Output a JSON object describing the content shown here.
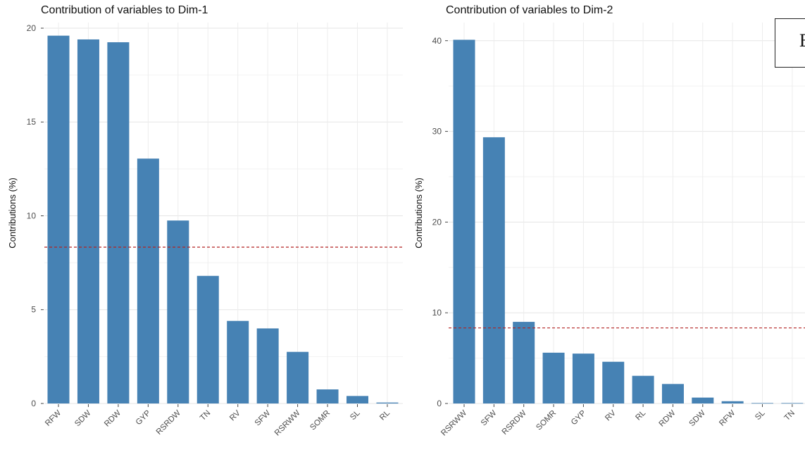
{
  "chart_data": [
    {
      "type": "bar",
      "title": "Contribution of variables to Dim-1",
      "xlabel": "",
      "ylabel": "Contributions (%)",
      "categories": [
        "RFW",
        "SDW",
        "RDW",
        "GYP",
        "RSRDW",
        "TN",
        "RV",
        "SFW",
        "RSRWW",
        "SOMR",
        "SL",
        "RL"
      ],
      "values": [
        19.6,
        19.4,
        19.25,
        13.05,
        9.75,
        6.8,
        4.4,
        4.0,
        2.75,
        0.75,
        0.4,
        0.05
      ],
      "ylim": [
        0,
        20.3
      ],
      "yticks": [
        0,
        5,
        10,
        15,
        20
      ],
      "reference_line": 8.33,
      "bar_color": "#4682b4",
      "reference_color": "#b22222",
      "grid": true
    },
    {
      "type": "bar",
      "title": "Contribution of variables to Dim-2",
      "xlabel": "",
      "ylabel": "Contributions (%)",
      "categories": [
        "RSRWW",
        "SFW",
        "RSRDW",
        "SOMR",
        "GYP",
        "RV",
        "RL",
        "RDW",
        "SDW",
        "RFW",
        "SL",
        "TN"
      ],
      "values": [
        40.1,
        29.35,
        9.0,
        5.6,
        5.5,
        4.6,
        3.05,
        2.15,
        0.65,
        0.25,
        0.05,
        0.05
      ],
      "ylim": [
        0,
        42
      ],
      "yticks": [
        0,
        10,
        20,
        30,
        40
      ],
      "reference_line": 8.33,
      "bar_color": "#4682b4",
      "reference_color": "#b22222",
      "grid": true
    }
  ],
  "panel_label": "B"
}
